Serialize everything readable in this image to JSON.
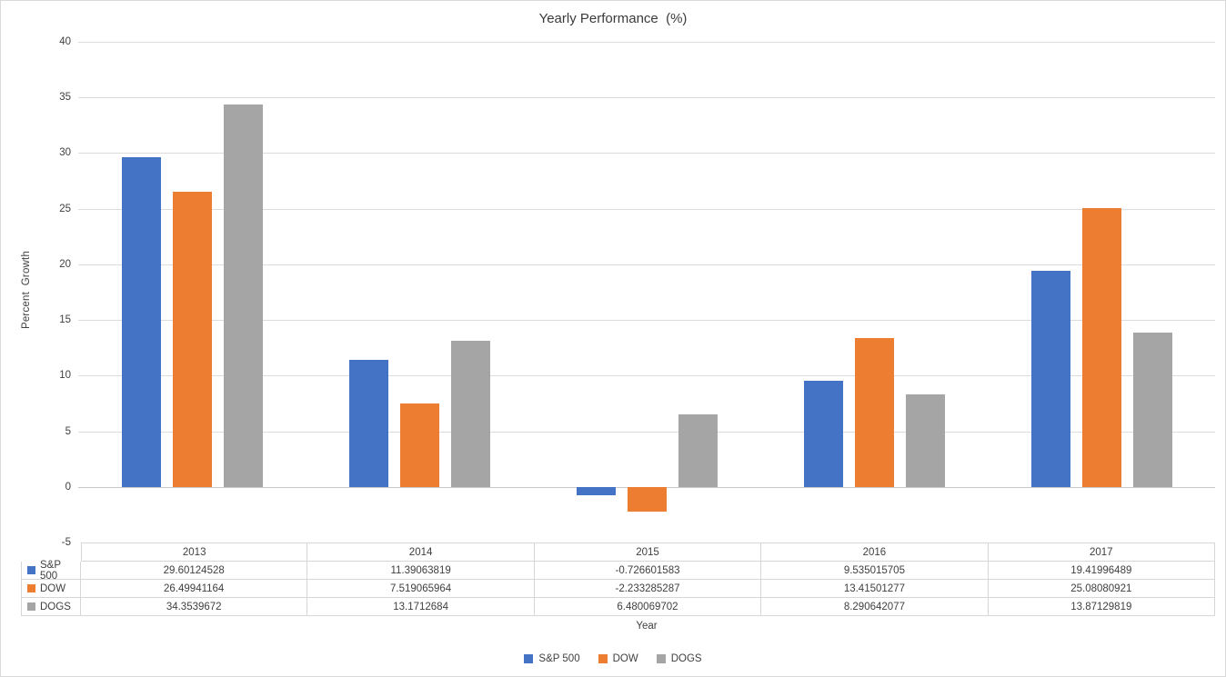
{
  "title": "Yearly Performance  (%)",
  "y_axis": {
    "title": "Percent  Growth",
    "ticks": [
      40,
      35,
      30,
      25,
      20,
      15,
      10,
      5,
      0,
      -5
    ],
    "min": -5,
    "max": 40
  },
  "x_axis": {
    "title": "Year"
  },
  "colors": {
    "sp500": "#4472C4",
    "dow": "#ED7D31",
    "dogs": "#A5A5A5",
    "gridline": "#DCDCDC",
    "table_border": "#D6D6D6",
    "text": "#404040"
  },
  "chart_data": {
    "type": "bar",
    "title": "Yearly Performance  (%)",
    "xlabel": "Year",
    "ylabel": "Percent  Growth",
    "categories": [
      "2013",
      "2014",
      "2015",
      "2016",
      "2017"
    ],
    "series": [
      {
        "name": "S&P 500",
        "color": "#4472C4",
        "values": [
          29.60124528,
          11.39063819,
          -0.726601583,
          9.535015705,
          19.41996489
        ]
      },
      {
        "name": "DOW",
        "color": "#ED7D31",
        "values": [
          26.49941164,
          7.519065964,
          -2.233285287,
          13.41501277,
          25.08080921
        ]
      },
      {
        "name": "DOGS",
        "color": "#A5A5A5",
        "values": [
          34.3539672,
          13.1712684,
          6.480069702,
          8.290642077,
          13.87129819
        ]
      }
    ],
    "ylim": [
      -5,
      40
    ],
    "ytick_step": 5,
    "grid": true,
    "legend_position": "bottom",
    "data_table": {
      "rows": [
        {
          "label": "S&P 500",
          "cells": [
            "29.60124528",
            "11.39063819",
            "-0.726601583",
            "9.535015705",
            "19.41996489"
          ]
        },
        {
          "label": "DOW",
          "cells": [
            "26.49941164",
            "7.519065964",
            "-2.233285287",
            "13.41501277",
            "25.08080921"
          ]
        },
        {
          "label": "DOGS",
          "cells": [
            "34.3539672",
            "13.1712684",
            "6.480069702",
            "8.290642077",
            "13.87129819"
          ]
        }
      ]
    }
  }
}
